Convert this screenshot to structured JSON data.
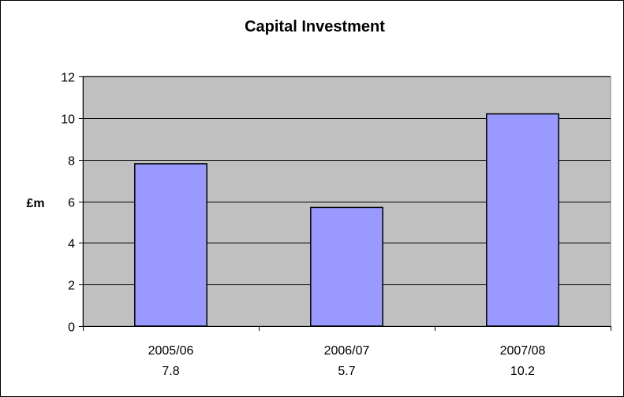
{
  "chart_data": {
    "type": "bar",
    "title": "Capital Investment",
    "xlabel": "",
    "ylabel": "£m",
    "categories": [
      "2005/06",
      "2006/07",
      "2007/08"
    ],
    "values": [
      7.8,
      5.7,
      10.2
    ],
    "data_labels": [
      "7.8",
      "5.7",
      "10.2"
    ],
    "ylim": [
      0,
      12
    ],
    "yticks": [
      0,
      2,
      4,
      6,
      8,
      10,
      12
    ],
    "grid": true,
    "legend": "none",
    "colors": {
      "bar_fill": "#9999ff",
      "bar_stroke": "#000000",
      "plot_background": "#c0c0c0",
      "gridline": "#000000"
    }
  }
}
